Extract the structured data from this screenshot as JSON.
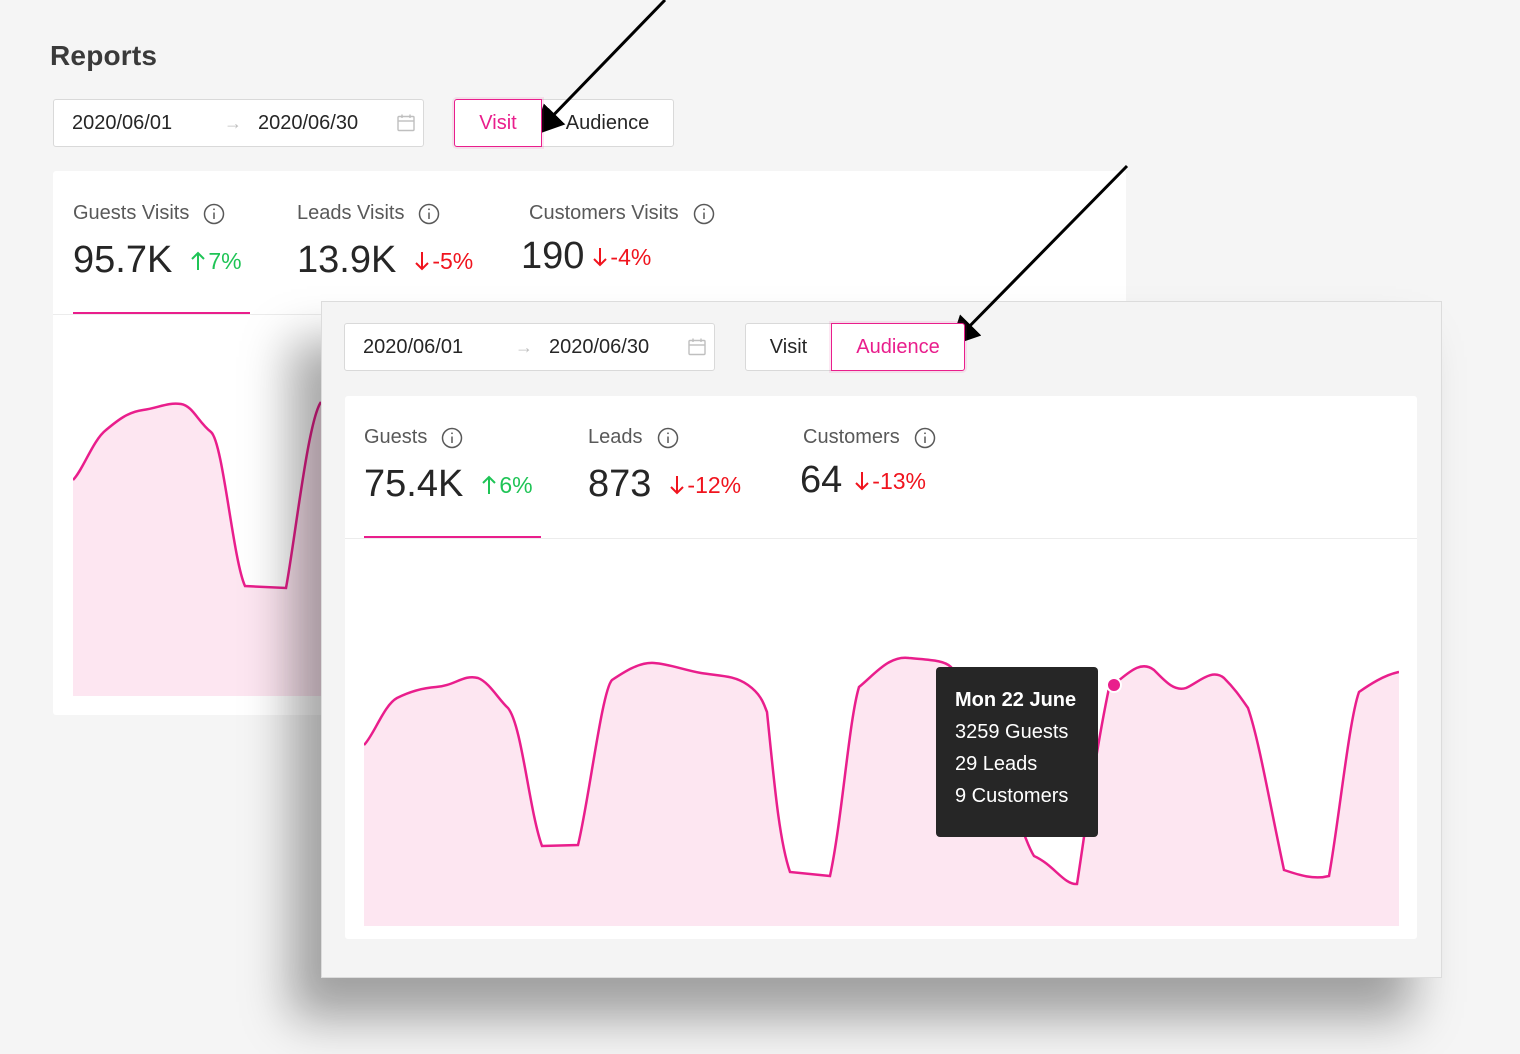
{
  "page": {
    "title": "Reports"
  },
  "back_panel": {
    "date_range": {
      "start": "2020/06/01",
      "end": "2020/06/30"
    },
    "view_toggle": {
      "options": [
        "Visit",
        "Audience"
      ],
      "selected": "Visit"
    },
    "metrics": [
      {
        "label": "Guests Visits",
        "value": "95.7K",
        "delta": "7%",
        "trend": "up"
      },
      {
        "label": "Leads Visits",
        "value": "13.9K",
        "delta": "-5%",
        "trend": "down"
      },
      {
        "label": "Customers Visits",
        "value": "190",
        "delta": "-4%",
        "trend": "down"
      }
    ],
    "active_metric": "Guests Visits"
  },
  "front_panel": {
    "date_range": {
      "start": "2020/06/01",
      "end": "2020/06/30"
    },
    "view_toggle": {
      "options": [
        "Visit",
        "Audience"
      ],
      "selected": "Audience"
    },
    "metrics": [
      {
        "label": "Guests",
        "value": "75.4K",
        "delta": "6%",
        "trend": "up"
      },
      {
        "label": "Leads",
        "value": "873",
        "delta": "-12%",
        "trend": "down"
      },
      {
        "label": "Customers",
        "value": "64",
        "delta": "-13%",
        "trend": "down"
      }
    ],
    "active_metric": "Guests",
    "tooltip": {
      "title": "Mon 22 June",
      "lines": [
        "3259 Guests",
        "29 Leads",
        "9 Customers"
      ]
    }
  },
  "colors": {
    "accent": "#e91e8c",
    "area_fill": "#fde6f1",
    "up": "#1fc456",
    "down": "#f0141e",
    "tooltip_bg": "#262626"
  },
  "icons": [
    "calendar-icon",
    "info-icon",
    "arrow-up-icon",
    "arrow-down-icon",
    "arrow-right-icon",
    "annotation-arrow"
  ]
}
